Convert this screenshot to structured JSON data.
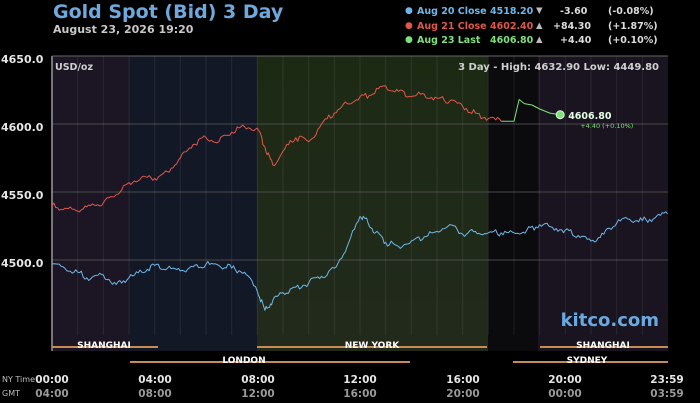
{
  "header": {
    "title": "Gold Spot (Bid) 3 Day",
    "subtitle": "August 23, 2026 19:20"
  },
  "legend": [
    {
      "label": "Aug 20 Close",
      "value": "4518.20",
      "arrow": "▼",
      "change": "-3.60",
      "pct": "(-0.08%)",
      "color": "#6fb7e6"
    },
    {
      "label": "Aug 21 Close",
      "value": "4602.40",
      "arrow": "▲",
      "change": "+84.30",
      "pct": "(+1.87%)",
      "color": "#e0564a"
    },
    {
      "label": "Aug 23 Last",
      "value": "4606.80",
      "arrow": "▲",
      "change": "+4.40",
      "pct": "(+0.10%)",
      "color": "#7ee07a"
    }
  ],
  "plot": {
    "unit_label": "USD/oz",
    "range_label": "3 Day - High: 4632.90  Low: 4449.80",
    "last_value_label": "4606.80",
    "last_change_label": "+4.40 (+0.10%)",
    "watermark": "kitco.com"
  },
  "sessions": {
    "row1": [
      "SHANGHAI",
      "NEW YORK",
      "SHANGHAI"
    ],
    "row2": [
      "LONDON",
      "SYDNEY"
    ]
  },
  "axis": {
    "ny_time_label": "NY Time",
    "gmt_label": "GMT",
    "y_ticks": [
      "4650.0",
      "4600.0",
      "4550.0",
      "4500.0"
    ],
    "x_ticks_ny": [
      "00:00",
      "04:00",
      "08:00",
      "12:00",
      "16:00",
      "20:00",
      "23:59"
    ],
    "x_ticks_gmt": [
      "04:00",
      "08:00",
      "12:00",
      "16:00",
      "20:00",
      "00:00",
      "03:59"
    ]
  },
  "chart_data": {
    "type": "line",
    "title": "Gold Spot (Bid) 3 Day",
    "ylabel": "USD/oz",
    "ylim": [
      4450,
      4650
    ],
    "xlim": [
      0,
      24
    ],
    "x_unit": "hours (NY time)",
    "series": [
      {
        "name": "Aug 20",
        "color": "#6fb7e6",
        "x": [
          0,
          0.5,
          1,
          1.5,
          2,
          2.5,
          3,
          3.5,
          4,
          4.5,
          5,
          5.5,
          6,
          6.5,
          7,
          7.5,
          8,
          8.3,
          8.6,
          9,
          9.5,
          10,
          10.5,
          11,
          11.5,
          12,
          12.3,
          12.6,
          13,
          13.5,
          14,
          14.5,
          15,
          15.5,
          16,
          16.5,
          17,
          17.5,
          18,
          18.5,
          19,
          19.5,
          20,
          20.5,
          21,
          21.5,
          22,
          22.5,
          23,
          23.5,
          23.98
        ],
        "y": [
          4497,
          4494,
          4491,
          4486,
          4489,
          4482,
          4487,
          4491,
          4496,
          4494,
          4492,
          4495,
          4497,
          4496,
          4494,
          4491,
          4477,
          4463,
          4470,
          4476,
          4480,
          4483,
          4488,
          4494,
          4510,
          4532,
          4528,
          4520,
          4513,
          4510,
          4514,
          4517,
          4521,
          4526,
          4519,
          4521,
          4520,
          4520,
          4520,
          4522,
          4526,
          4524,
          4522,
          4518,
          4514,
          4519,
          4527,
          4530,
          4529,
          4531,
          4534
        ]
      },
      {
        "name": "Aug 21",
        "color": "#e0564a",
        "x": [
          0,
          0.5,
          1,
          1.5,
          2,
          2.5,
          3,
          3.5,
          4,
          4.5,
          5,
          5.5,
          6,
          6.5,
          7,
          7.5,
          8,
          8.3,
          8.6,
          9,
          9.5,
          10,
          10.5,
          11,
          11.5,
          12,
          12.5,
          13,
          13.5,
          14,
          14.5,
          15,
          15.5,
          16,
          16.5,
          17,
          17.5
        ],
        "y": [
          4540,
          4538,
          4536,
          4540,
          4542,
          4548,
          4557,
          4561,
          4560,
          4565,
          4575,
          4585,
          4590,
          4587,
          4594,
          4598,
          4597,
          4583,
          4570,
          4580,
          4590,
          4587,
          4600,
          4608,
          4615,
          4620,
          4622,
          4628,
          4624,
          4620,
          4622,
          4619,
          4617,
          4613,
          4608,
          4604,
          4602
        ]
      },
      {
        "name": "Aug 23",
        "color": "#7ee07a",
        "x": [
          17.5,
          18,
          18.2,
          18.4,
          18.7,
          19,
          19.4,
          19.8
        ],
        "y": [
          4602,
          4602,
          4618,
          4615,
          4614,
          4611,
          4608,
          4606.8
        ]
      }
    ]
  }
}
